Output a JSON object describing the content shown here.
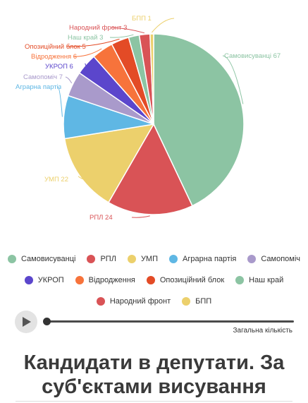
{
  "chart_data": {
    "type": "pie",
    "title": "Кандидати в депутати. За суб'єктами висування",
    "slices": [
      {
        "name": "Самовисуванці",
        "value": 67,
        "label": "Самовисуванці 67",
        "color": "#8cc4a3"
      },
      {
        "name": "РПЛ",
        "value": 24,
        "label": "РПЛ 24",
        "color": "#d95356"
      },
      {
        "name": "УМП",
        "value": 22,
        "label": "УМП 22",
        "color": "#ecd06c"
      },
      {
        "name": "Аграрна партія",
        "value": 12,
        "label": "Аграрна партіз",
        "color": "#5fb7e4"
      },
      {
        "name": "Самопоміч",
        "value": 7,
        "label": "Самопоміч 7",
        "color": "#a99acb"
      },
      {
        "name": "УКРОП",
        "value": 6,
        "label": "УКРОП 6",
        "color": "#5b46cc"
      },
      {
        "name": "Відродження",
        "value": 6,
        "label": "Відродження 6",
        "color": "#f7733b"
      },
      {
        "name": "Опозиційний блок",
        "value": 5,
        "label": "Опозиційний блок 5",
        "color": "#e34b26"
      },
      {
        "name": "Наш край",
        "value": 3,
        "label": "Наш край 3",
        "color": "#8cc4a3"
      },
      {
        "name": "Народний фронт",
        "value": 3,
        "label": "Народний фронт 3",
        "color": "#d95356"
      },
      {
        "name": "БПП",
        "value": 1,
        "label": "БПП 1",
        "color": "#ecd06c"
      }
    ]
  },
  "legend": {
    "rows": [
      [
        {
          "label": "Самовисуванці",
          "color": "#8cc4a3"
        },
        {
          "label": "РПЛ",
          "color": "#d95356"
        },
        {
          "label": "УМП",
          "color": "#ecd06c"
        },
        {
          "label": "Аграрна партія",
          "color": "#5fb7e4"
        },
        {
          "label": "Самопоміч",
          "color": "#a99acb"
        }
      ],
      [
        {
          "label": "УКРОП",
          "color": "#5b46cc"
        },
        {
          "label": "Відродження",
          "color": "#f7733b"
        },
        {
          "label": "Опозиційний блок",
          "color": "#e34b26"
        },
        {
          "label": "Наш край",
          "color": "#8cc4a3"
        }
      ],
      [
        {
          "label": "Народний фронт",
          "color": "#d95356"
        },
        {
          "label": "БПП",
          "color": "#ecd06c"
        }
      ]
    ]
  },
  "player": {
    "track_label": "Загальна кількість",
    "progress": 0
  },
  "page": {
    "title": "Кандидати в депутати. За суб'єктами висування"
  }
}
